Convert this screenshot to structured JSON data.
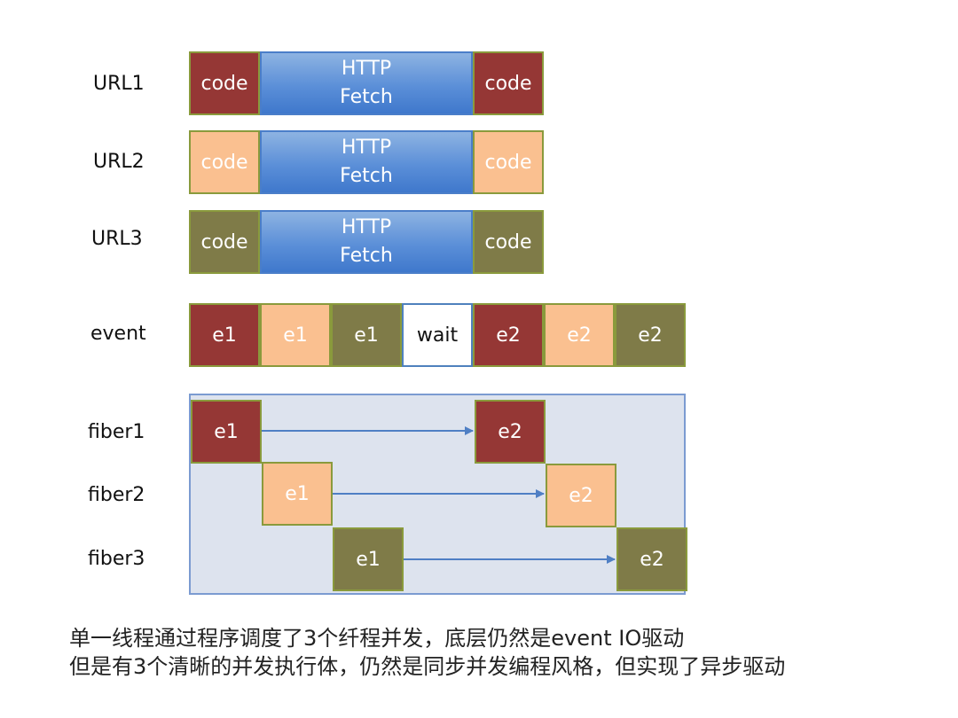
{
  "rows": [
    {
      "label": "URL1",
      "cells": [
        "code",
        "HTTP",
        "Fetch",
        "code"
      ]
    },
    {
      "label": "URL2",
      "cells": [
        "code",
        "HTTP",
        "Fetch",
        "code"
      ]
    },
    {
      "label": "URL3",
      "cells": [
        "code",
        "HTTP",
        "Fetch",
        "code"
      ]
    }
  ],
  "event": {
    "label": "event",
    "cells": [
      "e1",
      "e1",
      "e1",
      "wait",
      "e2",
      "e2",
      "e2"
    ]
  },
  "fibers": [
    {
      "label": "fiber1",
      "start": "e1",
      "end": "e2"
    },
    {
      "label": "fiber2",
      "start": "e1",
      "end": "e2"
    },
    {
      "label": "fiber3",
      "start": "e1",
      "end": "e2"
    }
  ],
  "colors": {
    "fiber1": "#953735",
    "fiber2": "#fac090",
    "fiber3": "#7f7b48",
    "http": "#5b8fd8",
    "arrow": "#4f7fc4",
    "panel": "#dde3ee"
  },
  "caption": {
    "line1": "单一线程通过程序调度了3个纤程并发，底层仍然是event IO驱动",
    "line2": "但是有3个清晰的并发执行体，仍然是同步并发编程风格，但实现了异步驱动"
  }
}
